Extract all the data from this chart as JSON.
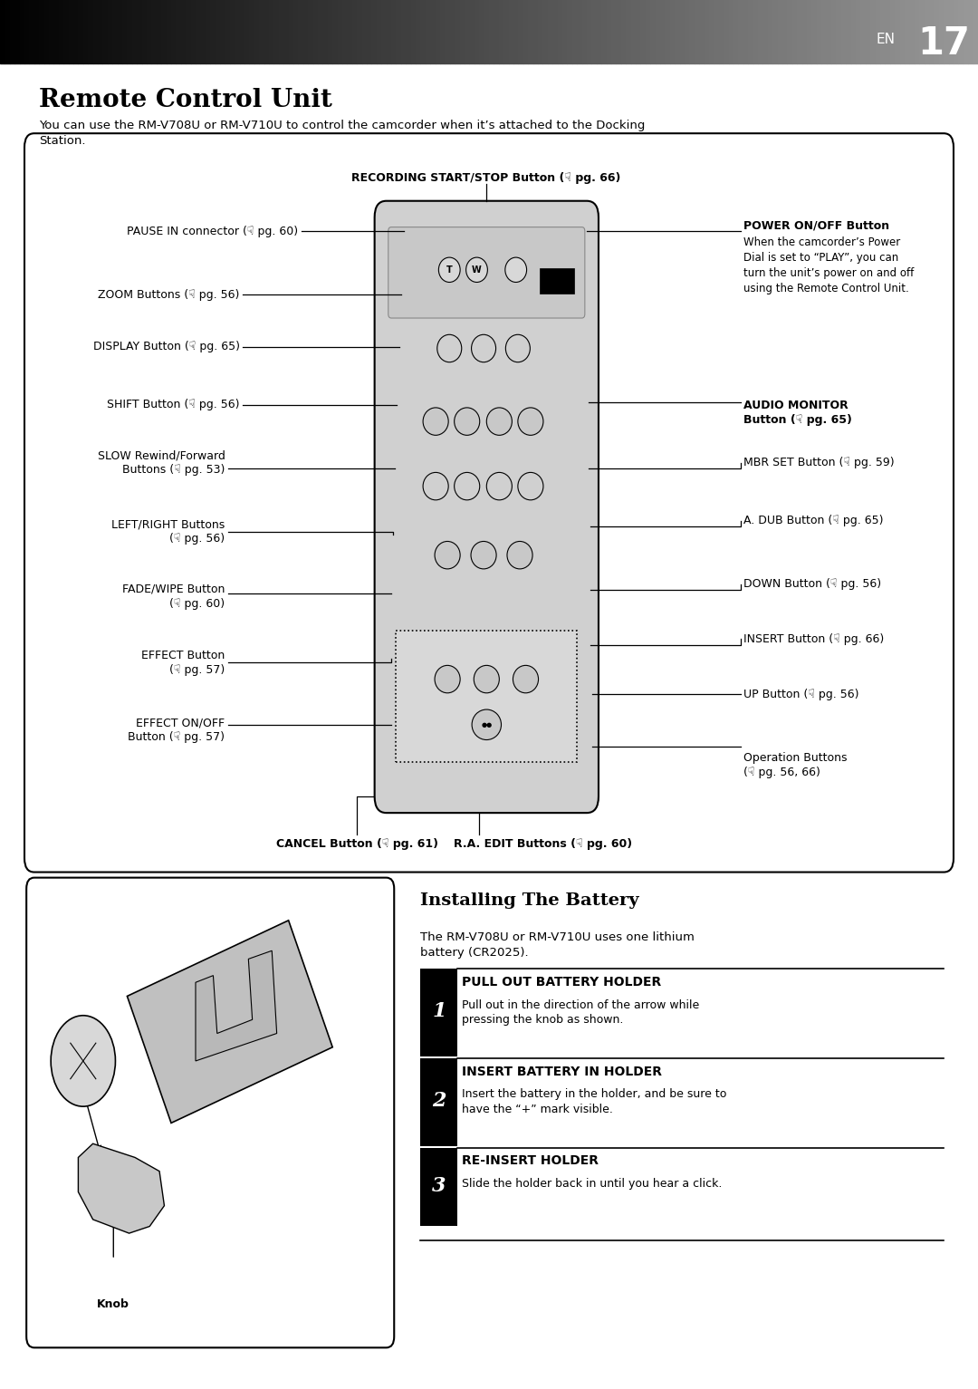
{
  "page_title": "Remote Control Unit",
  "page_subtitle": "You can use the RM-V708U or RM-V710U to control the camcorder when it’s attached to the Docking\nStation.",
  "page_number": "17",
  "page_en": "EN",
  "background_color": "#ffffff",
  "section2_title": "Installing The Battery",
  "section2_subtitle": "The RM-V708U or RM-V710U uses one lithium\nbattery (CR2025).",
  "steps": [
    {
      "number": "1",
      "title": "PULL OUT BATTERY HOLDER",
      "body": "Pull out in the direction of the arrow while\npressing the knob as shown."
    },
    {
      "number": "2",
      "title": "INSERT BATTERY IN HOLDER",
      "body": "Insert the battery in the holder, and be sure to\nhave the “+” mark visible."
    },
    {
      "number": "3",
      "title": "RE-INSERT HOLDER",
      "body": "Slide the holder back in until you hear a click."
    }
  ],
  "knob_label": "Knob"
}
